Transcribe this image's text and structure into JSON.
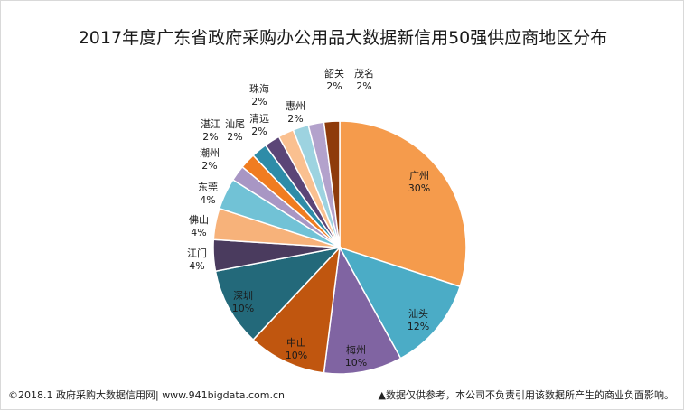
{
  "chart_data": {
    "type": "pie",
    "title": "2017年度广东省政府采购办公用品大数据新信用50强供应商地区分布",
    "slices": [
      {
        "name": "广州",
        "label": "30%",
        "value": 30,
        "color": "#F59B4C"
      },
      {
        "name": "汕头",
        "label": "12%",
        "value": 12,
        "color": "#4BACC6"
      },
      {
        "name": "梅州",
        "label": "10%",
        "value": 10,
        "color": "#8064A2"
      },
      {
        "name": "中山",
        "label": "10%",
        "value": 10,
        "color": "#C0560F"
      },
      {
        "name": "深圳",
        "label": "10%",
        "value": 10,
        "color": "#23697A"
      },
      {
        "name": "江门",
        "label": "4%",
        "value": 4,
        "color": "#4A3B5E"
      },
      {
        "name": "佛山",
        "label": "4%",
        "value": 4,
        "color": "#F7B27A"
      },
      {
        "name": "东莞",
        "label": "4%",
        "value": 4,
        "color": "#71C2D6"
      },
      {
        "name": "潮州",
        "label": "2%",
        "value": 2,
        "color": "#A896C4"
      },
      {
        "name": "湛江",
        "label": "2%",
        "value": 2,
        "color": "#F07C20"
      },
      {
        "name": "汕尾",
        "label": "2%",
        "value": 2,
        "color": "#2E8CA8"
      },
      {
        "name": "清远",
        "label": "2%",
        "value": 2,
        "color": "#5B4577"
      },
      {
        "name": "珠海",
        "label": "2%",
        "value": 2,
        "color": "#FAC090"
      },
      {
        "name": "惠州",
        "label": "2%",
        "value": 2,
        "color": "#9DD3E0"
      },
      {
        "name": "韶关",
        "label": "2%",
        "value": 2,
        "color": "#B3A2CC"
      },
      {
        "name": "茂名",
        "label": "2%",
        "value": 2,
        "color": "#8E3B0B"
      }
    ]
  },
  "footer": {
    "left": "©2018.1 政府采购大数据信用网| www.941bigdata.com.cn",
    "right": "▲数据仅供参考，本公司不负责引用该数据所产生的商业负面影响。"
  }
}
